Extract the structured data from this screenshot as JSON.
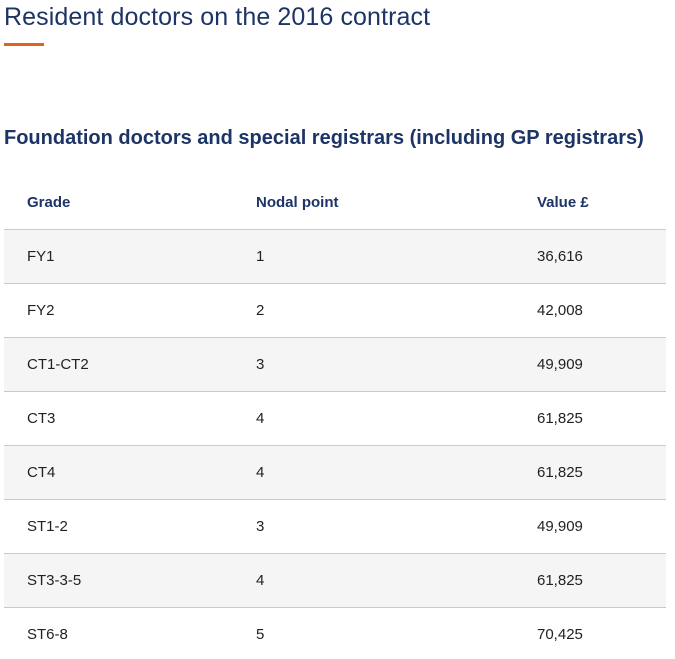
{
  "page": {
    "title": "Resident doctors on the 2016 contract"
  },
  "section": {
    "heading": "Foundation doctors and special registrars (including GP registrars)"
  },
  "table": {
    "headers": {
      "grade": "Grade",
      "nodal_point": "Nodal point",
      "value": "Value £"
    },
    "rows": [
      {
        "grade": "FY1",
        "nodal_point": "1",
        "value": "36,616"
      },
      {
        "grade": "FY2",
        "nodal_point": "2",
        "value": "42,008"
      },
      {
        "grade": "CT1-CT2",
        "nodal_point": "3",
        "value": "49,909"
      },
      {
        "grade": "CT3",
        "nodal_point": "4",
        "value": "61,825"
      },
      {
        "grade": "CT4",
        "nodal_point": "4",
        "value": "61,825"
      },
      {
        "grade": "ST1-2",
        "nodal_point": "3",
        "value": "49,909"
      },
      {
        "grade": "ST3-3-5",
        "nodal_point": "4",
        "value": "61,825"
      },
      {
        "grade": "ST6-8",
        "nodal_point": "5",
        "value": "70,425"
      }
    ]
  },
  "colors": {
    "heading_navy": "#1d3466",
    "accent_orange": "#e0621c",
    "row_stripe": "#f5f5f5",
    "divider": "#c9c9c9"
  }
}
